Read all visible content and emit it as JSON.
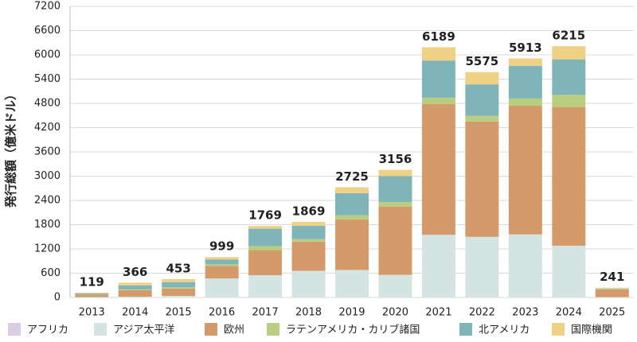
{
  "chart_data": {
    "type": "stacked_bar",
    "y_label": "発行総額（億米ドル）",
    "categories": [
      "2013",
      "2014",
      "2015",
      "2016",
      "2017",
      "2018",
      "2019",
      "2020",
      "2021",
      "2022",
      "2023",
      "2024",
      "2025"
    ],
    "series": [
      {
        "name": "アフリカ",
        "color": "#d9cce3",
        "values": [
          0,
          0,
          0,
          0,
          0,
          0,
          0,
          0,
          0,
          0,
          0,
          0,
          0
        ]
      },
      {
        "name": "アジア太平洋",
        "color": "#d4e4e3",
        "values": [
          10,
          20,
          40,
          470,
          550,
          660,
          680,
          560,
          1550,
          1500,
          1560,
          1280,
          10
        ]
      },
      {
        "name": "欧州",
        "color": "#d49a6a",
        "values": [
          60,
          160,
          180,
          310,
          620,
          720,
          1250,
          1690,
          3230,
          2850,
          3180,
          3430,
          190
        ]
      },
      {
        "name": "ラテンアメリカ・カリブ諸国",
        "color": "#b9cf7f",
        "values": [
          5,
          20,
          30,
          40,
          100,
          60,
          100,
          110,
          160,
          140,
          180,
          300,
          10
        ]
      },
      {
        "name": "北アメリカ",
        "color": "#7fb5b9",
        "values": [
          24,
          100,
          130,
          120,
          430,
          330,
          550,
          640,
          920,
          780,
          810,
          880,
          10
        ]
      },
      {
        "name": "国際機関",
        "color": "#efd185",
        "values": [
          20,
          66,
          73,
          59,
          69,
          99,
          145,
          156,
          329,
          305,
          183,
          325,
          21
        ]
      }
    ],
    "totals": [
      119,
      366,
      453,
      999,
      1769,
      1869,
      2725,
      3156,
      6189,
      5575,
      5913,
      6215,
      241
    ],
    "ylim": [
      0,
      7200
    ],
    "yticks": [
      0,
      600,
      1200,
      1800,
      2400,
      3000,
      3600,
      4200,
      4800,
      5400,
      6000,
      6600,
      7200
    ],
    "grid": true,
    "legend": "bottom"
  }
}
